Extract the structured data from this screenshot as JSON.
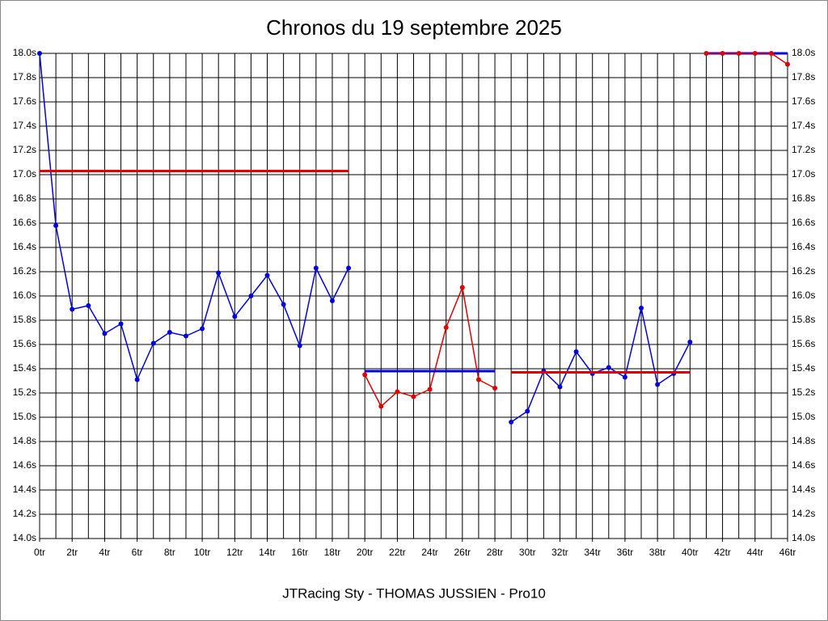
{
  "chart_data": {
    "type": "line",
    "title": "Chronos du 19 septembre 2025",
    "x_label": "JTRacing Sty - THOMAS JUSSIEN - Pro10",
    "xlim": [
      0,
      46
    ],
    "ylim": [
      14.0,
      18.0
    ],
    "grid": true,
    "x_grid_step": 1,
    "right_axis": true,
    "xticks": [
      {
        "value": 0,
        "label": "0tr"
      },
      {
        "value": 2,
        "label": "2tr"
      },
      {
        "value": 4,
        "label": "4tr"
      },
      {
        "value": 6,
        "label": "6tr"
      },
      {
        "value": 8,
        "label": "8tr"
      },
      {
        "value": 10,
        "label": "10tr"
      },
      {
        "value": 12,
        "label": "12tr"
      },
      {
        "value": 14,
        "label": "14tr"
      },
      {
        "value": 16,
        "label": "16tr"
      },
      {
        "value": 18,
        "label": "18tr"
      },
      {
        "value": 20,
        "label": "20tr"
      },
      {
        "value": 22,
        "label": "22tr"
      },
      {
        "value": 24,
        "label": "24tr"
      },
      {
        "value": 26,
        "label": "26tr"
      },
      {
        "value": 28,
        "label": "28tr"
      },
      {
        "value": 30,
        "label": "30tr"
      },
      {
        "value": 32,
        "label": "32tr"
      },
      {
        "value": 34,
        "label": "34tr"
      },
      {
        "value": 36,
        "label": "36tr"
      },
      {
        "value": 38,
        "label": "38tr"
      },
      {
        "value": 40,
        "label": "40tr"
      },
      {
        "value": 42,
        "label": "42tr"
      },
      {
        "value": 44,
        "label": "44tr"
      },
      {
        "value": 46,
        "label": "46tr"
      }
    ],
    "yticks": [
      {
        "value": 14.0,
        "label": "14.0s"
      },
      {
        "value": 14.2,
        "label": "14.2s"
      },
      {
        "value": 14.4,
        "label": "14.4s"
      },
      {
        "value": 14.6,
        "label": "14.6s"
      },
      {
        "value": 14.8,
        "label": "14.8s"
      },
      {
        "value": 15.0,
        "label": "15.0s"
      },
      {
        "value": 15.2,
        "label": "15.2s"
      },
      {
        "value": 15.4,
        "label": "15.4s"
      },
      {
        "value": 15.6,
        "label": "15.6s"
      },
      {
        "value": 15.8,
        "label": "15.8s"
      },
      {
        "value": 16.0,
        "label": "16.0s"
      },
      {
        "value": 16.2,
        "label": "16.2s"
      },
      {
        "value": 16.4,
        "label": "16.4s"
      },
      {
        "value": 16.6,
        "label": "16.6s"
      },
      {
        "value": 16.8,
        "label": "16.8s"
      },
      {
        "value": 17.0,
        "label": "17.0s"
      },
      {
        "value": 17.2,
        "label": "17.2s"
      },
      {
        "value": 17.4,
        "label": "17.4s"
      },
      {
        "value": 17.6,
        "label": "17.6s"
      },
      {
        "value": 17.8,
        "label": "17.8s"
      },
      {
        "value": 18.0,
        "label": "18.0s"
      }
    ],
    "series": [
      {
        "color": "#0000e0",
        "markers": true,
        "x": [
          0,
          1,
          2,
          3,
          4,
          5,
          6,
          7,
          8,
          9,
          10,
          11,
          12,
          13,
          14,
          15,
          16,
          17,
          18,
          19
        ],
        "values": [
          18.0,
          16.58,
          15.89,
          15.92,
          15.69,
          15.77,
          15.31,
          15.61,
          15.7,
          15.67,
          15.73,
          16.19,
          15.83,
          16.0,
          16.17,
          15.93,
          15.59,
          16.23,
          15.96,
          16.23
        ]
      },
      {
        "color": "#e00000",
        "markers": false,
        "x": [
          0,
          19
        ],
        "values": [
          17.03,
          17.03
        ]
      },
      {
        "color": "#e00000",
        "markers": true,
        "x": [
          20,
          21,
          22,
          23,
          24,
          25,
          26,
          27,
          28
        ],
        "values": [
          15.35,
          15.09,
          15.21,
          15.17,
          15.23,
          15.74,
          16.07,
          15.31,
          15.24
        ]
      },
      {
        "color": "#0000e0",
        "markers": false,
        "x": [
          20,
          28
        ],
        "values": [
          15.38,
          15.38
        ]
      },
      {
        "color": "#0000e0",
        "markers": true,
        "x": [
          29,
          30,
          31,
          32,
          33,
          34,
          35,
          36,
          37,
          38,
          39,
          40
        ],
        "values": [
          14.96,
          15.05,
          15.38,
          15.25,
          15.54,
          15.36,
          15.41,
          15.33,
          15.9,
          15.27,
          15.36,
          15.62
        ]
      },
      {
        "color": "#e00000",
        "markers": false,
        "x": [
          29,
          40
        ],
        "values": [
          15.37,
          15.37
        ]
      },
      {
        "color": "#0000e0",
        "markers": false,
        "x": [
          41,
          46
        ],
        "values": [
          18.0,
          18.0
        ]
      },
      {
        "color": "#e00000",
        "markers": true,
        "x": [
          41,
          42,
          43,
          44,
          45,
          46
        ],
        "values": [
          18.0,
          18.0,
          18.0,
          18.0,
          18.0,
          17.91
        ]
      }
    ]
  }
}
